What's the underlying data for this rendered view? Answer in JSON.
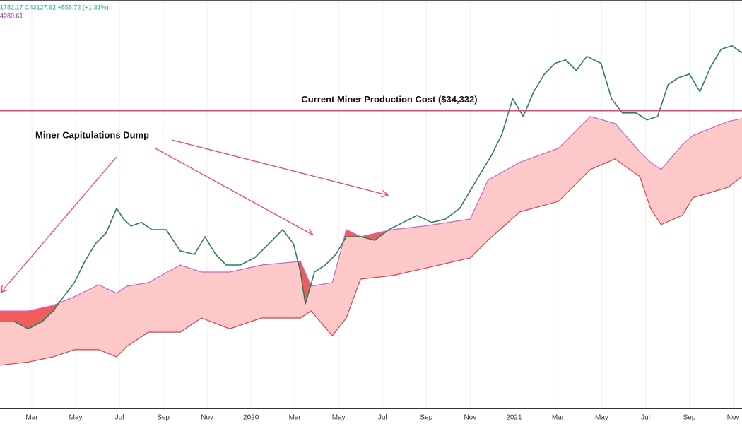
{
  "chart_data": {
    "type": "line",
    "legend_texts": [
      "1782.17 C43127.62 +555.72 (+1.31%)",
      "4280.61"
    ],
    "legend_colors": [
      "#26a69a",
      "#9c27b0"
    ],
    "annotations": [
      "Miner Capitulations Dump"
    ],
    "hline": {
      "value": 34332,
      "label": "Current Miner Production Cost ($34,332)",
      "color": "#ec407a"
    },
    "log_scale": true,
    "ylim": [
      1410,
      112000
    ],
    "xlim": [
      0.55,
      34.4
    ],
    "xticks": [
      {
        "value": 2,
        "label": "Mar"
      },
      {
        "value": 4,
        "label": "May"
      },
      {
        "value": 6,
        "label": "Jul"
      },
      {
        "value": 8,
        "label": "Sep"
      },
      {
        "value": 10,
        "label": "Nov"
      },
      {
        "value": 12,
        "label": "2020"
      },
      {
        "value": 14,
        "label": "Mar"
      },
      {
        "value": 16,
        "label": "May"
      },
      {
        "value": 18,
        "label": "Jul"
      },
      {
        "value": 20,
        "label": "Sep"
      },
      {
        "value": 22,
        "label": "Nov"
      },
      {
        "value": 24,
        "label": "2021"
      },
      {
        "value": 26,
        "label": "Mar"
      },
      {
        "value": 28,
        "label": "May"
      },
      {
        "value": 30,
        "label": "Jul"
      },
      {
        "value": 32,
        "label": "Sep"
      },
      {
        "value": 34,
        "label": "Nov"
      }
    ],
    "grid": true,
    "price": {
      "color": "#2e7d5b",
      "x": [
        1.19,
        1.84,
        2.48,
        2.97,
        3.45,
        3.94,
        4.42,
        4.9,
        5.39,
        5.87,
        6.19,
        6.52,
        7.0,
        7.48,
        8.13,
        8.77,
        9.42,
        9.9,
        10.39,
        10.87,
        11.52,
        12.16,
        12.81,
        13.45,
        13.94,
        14.26,
        14.48,
        14.9,
        15.39,
        15.87,
        16.35,
        17.0,
        17.65,
        18.29,
        18.94,
        19.58,
        20.23,
        20.87,
        21.52,
        22.0,
        22.48,
        22.97,
        23.45,
        23.94,
        24.42,
        24.9,
        25.39,
        25.87,
        26.35,
        26.84,
        27.32,
        27.97,
        28.45,
        28.94,
        29.58,
        30.06,
        30.55,
        31.03,
        31.52,
        32.0,
        32.48,
        32.97,
        33.45,
        33.94,
        34.4
      ],
      "values": [
        3620,
        3350,
        3620,
        4050,
        4720,
        5480,
        6880,
        8300,
        9300,
        12110,
        10810,
        10030,
        10420,
        9650,
        9650,
        7700,
        7410,
        8950,
        7410,
        6620,
        6620,
        7140,
        8300,
        9650,
        8300,
        6140,
        4370,
        6140,
        6620,
        7410,
        8950,
        8950,
        8620,
        9650,
        10420,
        11240,
        10420,
        10810,
        12110,
        14630,
        17660,
        21340,
        26760,
        39040,
        32320,
        42090,
        50850,
        56960,
        59120,
        52800,
        61380,
        56960,
        39040,
        33560,
        33560,
        31130,
        32320,
        45390,
        48960,
        50850,
        42090,
        54830,
        66230,
        68770,
        63760
      ]
    },
    "band": {
      "upper_color": "#a970d6",
      "lower_color": "#f23645",
      "fill": "#fcc8c8",
      "capitulation_color": "#f45b5b",
      "x": [
        0.55,
        1.84,
        2.97,
        3.94,
        5.06,
        5.87,
        6.35,
        7.32,
        8.77,
        9.74,
        11.03,
        12.48,
        14.26,
        14.74,
        15.71,
        16.35,
        17.0,
        18.45,
        19.9,
        22.0,
        22.81,
        24.26,
        26.03,
        27.48,
        28.61,
        29.74,
        30.23,
        30.71,
        31.68,
        32.16,
        33.77,
        34.4
      ],
      "upper": [
        4050,
        4050,
        4300,
        4720,
        5360,
        4900,
        5280,
        5480,
        6620,
        6140,
        6140,
        6620,
        6880,
        5280,
        5480,
        9650,
        8950,
        9650,
        10030,
        10810,
        16380,
        19790,
        23020,
        32320,
        29970,
        22150,
        19790,
        18340,
        23900,
        26360,
        30650,
        31600
      ],
      "lower": [
        2270,
        2350,
        2480,
        2680,
        2680,
        2480,
        2780,
        3230,
        3230,
        3760,
        3350,
        3760,
        3760,
        4050,
        3110,
        3760,
        5690,
        5910,
        6380,
        7140,
        8620,
        11660,
        13060,
        18340,
        20540,
        17010,
        12110,
        10180,
        11240,
        13570,
        15190,
        17010
      ]
    }
  }
}
